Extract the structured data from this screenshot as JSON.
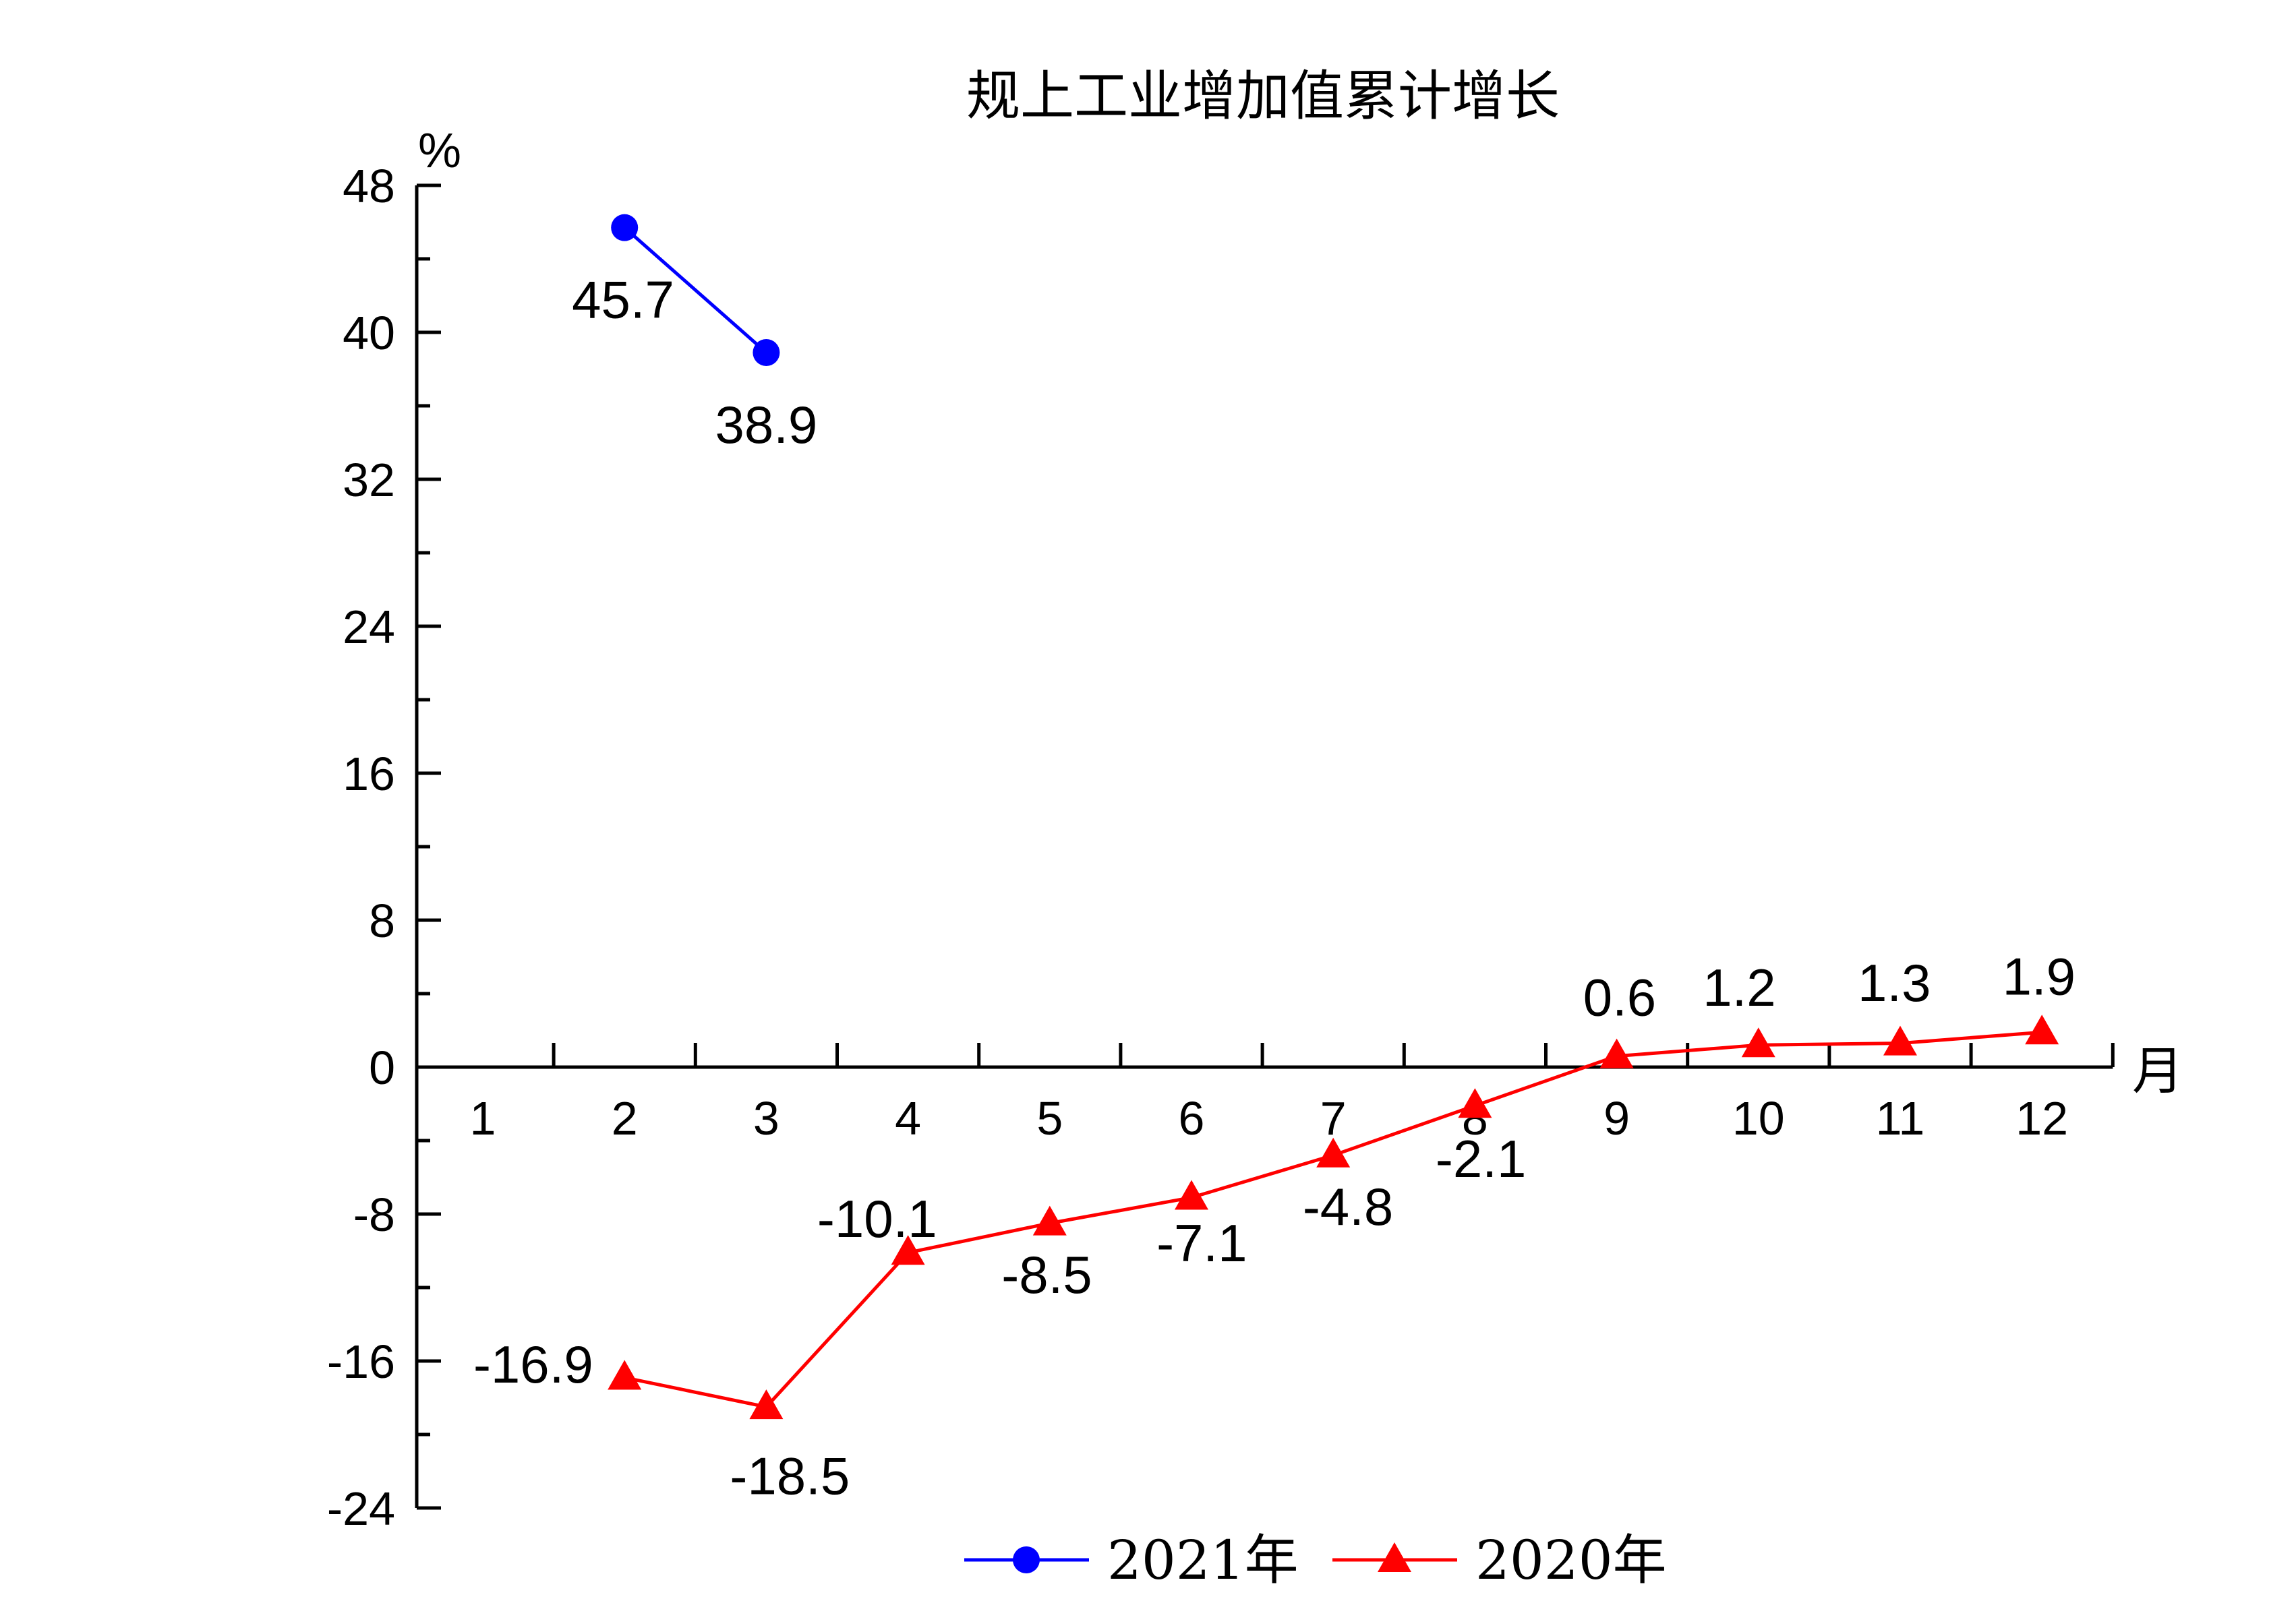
{
  "chart_data": {
    "type": "line",
    "title": "规上工业增加值累计增长",
    "ylabel": "%",
    "xlabel": "月",
    "ylim": [
      -24,
      48
    ],
    "yticks": [
      -24,
      -16,
      -8,
      0,
      8,
      16,
      24,
      32,
      40,
      48
    ],
    "categories": [
      "1",
      "2",
      "3",
      "4",
      "5",
      "6",
      "7",
      "8",
      "9",
      "10",
      "11",
      "12"
    ],
    "grid": false,
    "legend_position": "bottom",
    "series": [
      {
        "name": "2021年",
        "color": "#0000FF",
        "marker": "circle",
        "x": [
          2,
          3
        ],
        "values": [
          45.7,
          38.9
        ],
        "labels": [
          "45.7",
          "38.9"
        ]
      },
      {
        "name": "2020年",
        "color": "#FF0000",
        "marker": "triangle",
        "x": [
          2,
          3,
          4,
          5,
          6,
          7,
          8,
          9,
          10,
          11,
          12
        ],
        "values": [
          -16.9,
          -18.5,
          -10.1,
          -8.5,
          -7.1,
          -4.8,
          -2.1,
          0.6,
          1.2,
          1.3,
          1.9
        ],
        "labels": [
          "-16.9",
          "-18.5",
          "-10.1",
          "-8.5",
          "-7.1",
          "-4.8",
          "-2.1",
          "0.6",
          "1.2",
          "1.3",
          "1.9"
        ]
      }
    ]
  }
}
